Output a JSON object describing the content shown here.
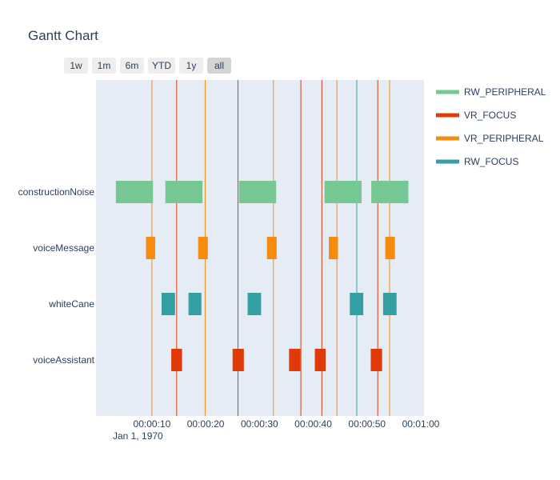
{
  "chart_data": {
    "type": "gantt",
    "title": "Gantt Chart",
    "x_ticks": [
      "00:00:10",
      "00:00:20",
      "00:00:30",
      "00:00:40",
      "00:00:50",
      "00:01:00"
    ],
    "x_tick_seconds": [
      10,
      20,
      30,
      40,
      50,
      60
    ],
    "x_date_label": "Jan 1, 1970",
    "x_range_seconds": [
      -0.4,
      60.6
    ],
    "categories": [
      "constructionNoise",
      "voiceMessage",
      "whiteCane",
      "voiceAssistant"
    ],
    "range_selector": [
      "1w",
      "1m",
      "6m",
      "YTD",
      "1y",
      "all"
    ],
    "range_selector_active": "all",
    "legend": [
      {
        "name": "RW_PERIPHERAL",
        "color": "#76c893"
      },
      {
        "name": "VR_FOCUS",
        "color": "#e03a08"
      },
      {
        "name": "VR_PERIPHERAL",
        "color": "#f68c0e"
      },
      {
        "name": "RW_FOCUS",
        "color": "#34a0a4"
      }
    ],
    "tasks": [
      {
        "category": "constructionNoise",
        "series": "RW_PERIPHERAL",
        "start": 3.3,
        "end": 10.2
      },
      {
        "category": "constructionNoise",
        "series": "RW_PERIPHERAL",
        "start": 12.5,
        "end": 19.4
      },
      {
        "category": "constructionNoise",
        "series": "RW_PERIPHERAL",
        "start": 26.2,
        "end": 33.1
      },
      {
        "category": "constructionNoise",
        "series": "RW_PERIPHERAL",
        "start": 42.1,
        "end": 49.0
      },
      {
        "category": "constructionNoise",
        "series": "RW_PERIPHERAL",
        "start": 50.8,
        "end": 57.7
      },
      {
        "category": "voiceMessage",
        "series": "VR_PERIPHERAL",
        "start": 8.9,
        "end": 10.6
      },
      {
        "category": "voiceMessage",
        "series": "VR_PERIPHERAL",
        "start": 18.6,
        "end": 20.4
      },
      {
        "category": "voiceMessage",
        "series": "VR_PERIPHERAL",
        "start": 31.4,
        "end": 33.2
      },
      {
        "category": "voiceMessage",
        "series": "VR_PERIPHERAL",
        "start": 42.9,
        "end": 44.6
      },
      {
        "category": "voiceMessage",
        "series": "VR_PERIPHERAL",
        "start": 53.4,
        "end": 55.2
      },
      {
        "category": "whiteCane",
        "series": "RW_FOCUS",
        "start": 11.8,
        "end": 14.3
      },
      {
        "category": "whiteCane",
        "series": "RW_FOCUS",
        "start": 16.8,
        "end": 19.2
      },
      {
        "category": "whiteCane",
        "series": "RW_FOCUS",
        "start": 27.8,
        "end": 30.3
      },
      {
        "category": "whiteCane",
        "series": "RW_FOCUS",
        "start": 46.8,
        "end": 49.3
      },
      {
        "category": "whiteCane",
        "series": "RW_FOCUS",
        "start": 53.0,
        "end": 55.5
      },
      {
        "category": "voiceAssistant",
        "series": "VR_FOCUS",
        "start": 13.6,
        "end": 15.6
      },
      {
        "category": "voiceAssistant",
        "series": "VR_FOCUS",
        "start": 25.0,
        "end": 27.1
      },
      {
        "category": "voiceAssistant",
        "series": "VR_FOCUS",
        "start": 35.5,
        "end": 37.6
      },
      {
        "category": "voiceAssistant",
        "series": "VR_FOCUS",
        "start": 40.3,
        "end": 42.3
      },
      {
        "category": "voiceAssistant",
        "series": "VR_FOCUS",
        "start": 50.7,
        "end": 52.8
      }
    ],
    "vlines": [
      {
        "x": 10.0,
        "color": "#f68c0e"
      },
      {
        "x": 14.6,
        "color": "#e03a08"
      },
      {
        "x": 19.9,
        "color": "#f68c0e"
      },
      {
        "x": 26.0,
        "color": "#e03a08"
      },
      {
        "x": 32.6,
        "color": "#f68c0e"
      },
      {
        "x": 37.7,
        "color": "#e03a08"
      },
      {
        "x": 41.6,
        "color": "#e03a08"
      },
      {
        "x": 44.4,
        "color": "#f68c0e"
      },
      {
        "x": 48.1,
        "color": "#34a0a4"
      },
      {
        "x": 52.0,
        "color": "#e03a08"
      },
      {
        "x": 54.2,
        "color": "#f68c0e"
      }
    ],
    "plot_bgcolor": "#e5ecf6",
    "grid": false
  }
}
